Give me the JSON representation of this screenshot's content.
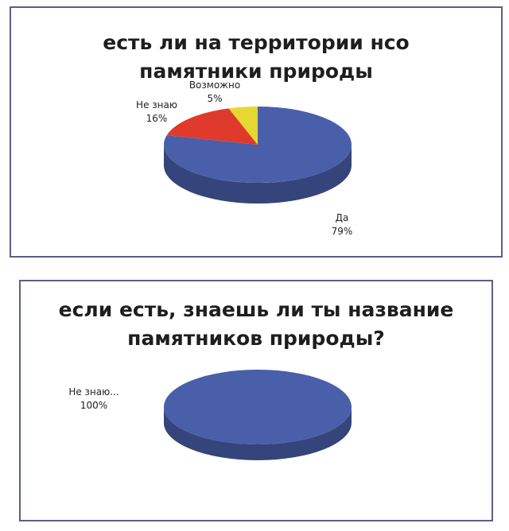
{
  "chart_data": [
    {
      "type": "pie",
      "title_lines": [
        "есть ли на территории нсо",
        "памятники природы"
      ],
      "slices": [
        {
          "label": "Да",
          "percent_label": "79%",
          "value": 79,
          "color": "#4a5faa"
        },
        {
          "label": "Не знаю",
          "percent_label": "16%",
          "value": 16,
          "color": "#e03a2c"
        },
        {
          "label": "Возможно",
          "percent_label": "5%",
          "value": 5,
          "color": "#e6d830"
        }
      ]
    },
    {
      "type": "pie",
      "title_lines": [
        "если есть, знаешь ли ты название",
        "памятников природы?"
      ],
      "slices": [
        {
          "label": "Не знаю...",
          "percent_label": "100%",
          "value": 100,
          "color": "#4a5faa"
        }
      ]
    }
  ]
}
